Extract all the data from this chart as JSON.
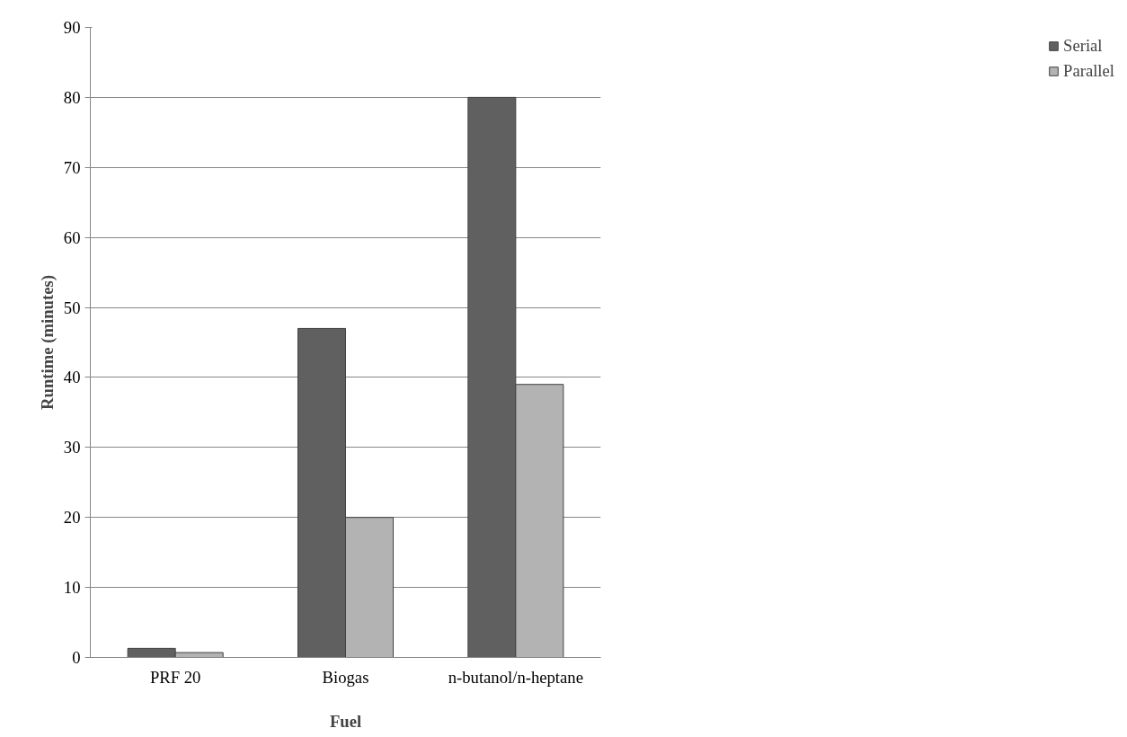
{
  "chart_data": {
    "type": "bar",
    "xlabel": "Fuel",
    "ylabel": "Runtime (minutes)",
    "categories": [
      "PRF 20",
      "Biogas",
      "n-butanol/n-heptane"
    ],
    "series": [
      {
        "name": "Serial",
        "color": "#606060",
        "values": [
          1.3,
          47,
          80
        ]
      },
      {
        "name": "Parallel",
        "color": "#b3b3b3",
        "values": [
          0.7,
          20,
          39
        ]
      }
    ],
    "ylim": [
      0,
      90
    ],
    "yticks": [
      0,
      10,
      20,
      30,
      40,
      50,
      60,
      70,
      80,
      90
    ],
    "grid": "y",
    "legend": "right"
  }
}
